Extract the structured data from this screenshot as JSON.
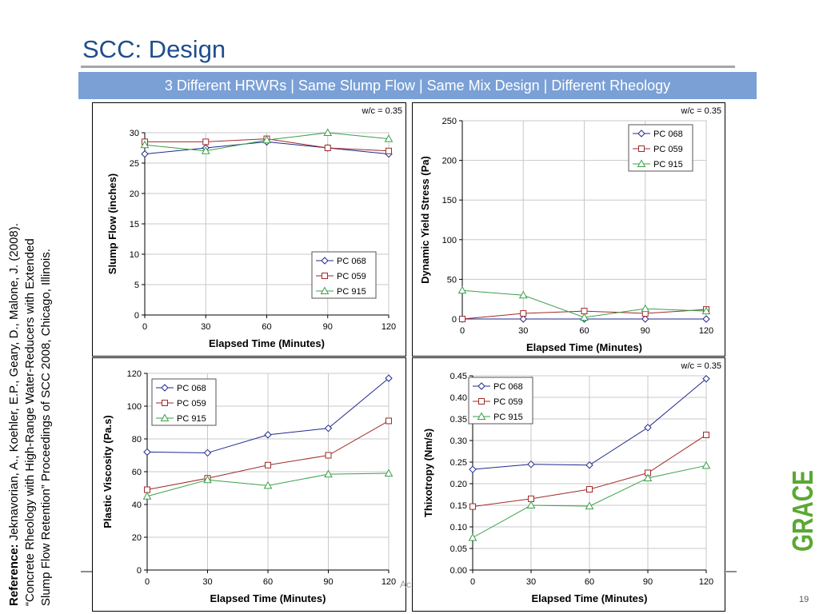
{
  "slide": {
    "title": "SCC: Design",
    "banner": "3 Different HRWRs | Same Slump Flow | Same Mix Design | Different Rheology",
    "page_number": "19",
    "reference": {
      "label": "Reference:",
      "lines": [
        "Jeknavorian, A., Koehler, E.P., Geary, D., Malone, J. (2008).",
        "“Concrete Rheology with High-Range Water-Reducers with Extended",
        "Slump Flow Retention” Proceedings of SCC 2008, Chicago, Illinois."
      ]
    },
    "logo_text": "GRACE",
    "partial_text": "Ac"
  },
  "colors": {
    "title": "#1f4e8c",
    "banner": "#7aa0d6",
    "pc068": "#1f2a8c",
    "pc059": "#a02a2a",
    "pc915": "#3aa04a",
    "logo": "#5aa832"
  },
  "chart_data": [
    {
      "type": "line",
      "ylabel": "Slump Flow (inches)",
      "xlabel": "Elapsed Time (Minutes)",
      "annotation": "w/c = 0.35",
      "x": [
        0,
        30,
        60,
        90,
        120
      ],
      "xlim": [
        0,
        120
      ],
      "ylim": [
        0,
        30
      ],
      "yticks": [
        0,
        5,
        10,
        15,
        20,
        25,
        30
      ],
      "ytick_labels": [
        "0",
        "5",
        "10",
        "15",
        "20",
        "25",
        "30"
      ],
      "xtick_labels": [
        "0",
        "30",
        "60",
        "90",
        "120"
      ],
      "grid": true,
      "legend": "bottom-right",
      "series": [
        {
          "name": "PC 068",
          "marker": "diamond",
          "values": [
            26.5,
            27.5,
            28.5,
            27.5,
            26.5
          ]
        },
        {
          "name": "PC 059",
          "marker": "square",
          "values": [
            28.5,
            28.5,
            29.0,
            27.5,
            27.0
          ]
        },
        {
          "name": "PC 915",
          "marker": "triangle",
          "values": [
            28.0,
            27.0,
            28.8,
            30.0,
            29.0
          ]
        }
      ]
    },
    {
      "type": "line",
      "ylabel": "Dynamic Yield Stress (Pa)",
      "xlabel": "Elapsed Time (Minutes)",
      "annotation": "w/c = 0.35",
      "x": [
        0,
        30,
        60,
        90,
        120
      ],
      "xlim": [
        0,
        120
      ],
      "ylim": [
        0,
        250
      ],
      "yticks": [
        0,
        50,
        100,
        150,
        200,
        250
      ],
      "ytick_labels": [
        "0",
        "50",
        "100",
        "150",
        "200",
        "250"
      ],
      "xtick_labels": [
        "0",
        "30",
        "60",
        "90",
        "120"
      ],
      "grid": true,
      "legend": "top-right",
      "series": [
        {
          "name": "PC 068",
          "marker": "diamond",
          "values": [
            0,
            0,
            0,
            0,
            0
          ]
        },
        {
          "name": "PC 059",
          "marker": "square",
          "values": [
            0,
            7,
            10,
            7,
            12
          ]
        },
        {
          "name": "PC 915",
          "marker": "triangle",
          "values": [
            36,
            30,
            2,
            13,
            10
          ]
        }
      ]
    },
    {
      "type": "line",
      "ylabel": "Plastic Viscosity (Pa.s)",
      "xlabel": "Elapsed Time (Minutes)",
      "annotation": "",
      "x": [
        0,
        30,
        60,
        90,
        120
      ],
      "xlim": [
        0,
        120
      ],
      "ylim": [
        0,
        120
      ],
      "yticks": [
        0,
        20,
        40,
        60,
        80,
        100,
        120
      ],
      "ytick_labels": [
        "0",
        "20",
        "40",
        "60",
        "80",
        "100",
        "120"
      ],
      "xtick_labels": [
        "0",
        "30",
        "60",
        "90",
        "120"
      ],
      "grid": true,
      "legend": "top-left",
      "series": [
        {
          "name": "PC 068",
          "marker": "diamond",
          "values": [
            72,
            71.5,
            82.5,
            86.5,
            117
          ]
        },
        {
          "name": "PC 059",
          "marker": "square",
          "values": [
            49,
            56,
            64,
            70,
            91
          ]
        },
        {
          "name": "PC 915",
          "marker": "triangle",
          "values": [
            45,
            55,
            51.5,
            58.5,
            59
          ]
        }
      ]
    },
    {
      "type": "line",
      "ylabel": "Thixotropy (Nm/s)",
      "xlabel": "Elapsed Time (Minutes)",
      "annotation": "w/c = 0.35",
      "x": [
        0,
        30,
        60,
        90,
        120
      ],
      "xlim": [
        0,
        120
      ],
      "ylim": [
        0,
        0.45
      ],
      "yticks": [
        0,
        0.05,
        0.1,
        0.15,
        0.2,
        0.25,
        0.3,
        0.35,
        0.4,
        0.45
      ],
      "ytick_labels": [
        "0.00",
        "0.05",
        "0.10",
        "0.15",
        "0.20",
        "0.25",
        "0.30",
        "0.35",
        "0.40",
        "0.45"
      ],
      "xtick_labels": [
        "0",
        "30",
        "60",
        "90",
        "120"
      ],
      "grid": true,
      "legend": "top-left",
      "series": [
        {
          "name": "PC 068",
          "marker": "diamond",
          "values": [
            0.233,
            0.245,
            0.243,
            0.33,
            0.443
          ]
        },
        {
          "name": "PC 059",
          "marker": "square",
          "values": [
            0.147,
            0.165,
            0.187,
            0.225,
            0.313
          ]
        },
        {
          "name": "PC 915",
          "marker": "triangle",
          "values": [
            0.075,
            0.15,
            0.148,
            0.213,
            0.242
          ]
        }
      ]
    }
  ]
}
